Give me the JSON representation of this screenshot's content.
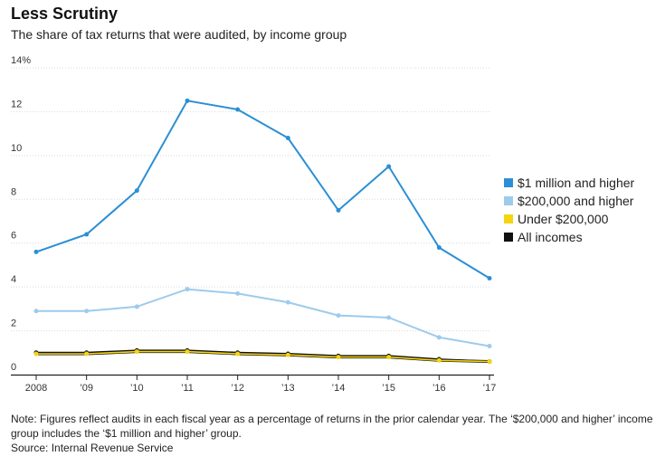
{
  "header": {
    "title": "Less Scrutiny",
    "subtitle": "The share of tax returns that were audited, by income group"
  },
  "footer": {
    "note": "Note: Figures reflect audits in each fiscal year as a percentage of returns in the prior calendar year. The ‘$200,000 and higher’ income group includes the ‘$1 million and higher’ group.",
    "source": "Source: Internal Revenue Service"
  },
  "chart_data": {
    "type": "line",
    "title": "Less Scrutiny",
    "subtitle": "The share of tax returns that were audited, by income group",
    "xlabel": "",
    "ylabel": "",
    "categories": [
      "2008",
      "’09",
      "’10",
      "’11",
      "’12",
      "’13",
      "’14",
      "’15",
      "’16",
      "’17"
    ],
    "ylim": [
      0,
      14
    ],
    "yticks": [
      0,
      2,
      4,
      6,
      8,
      10,
      12,
      14
    ],
    "ytick_labels": [
      "0",
      "2",
      "4",
      "6",
      "8",
      "10",
      "12",
      "14%"
    ],
    "grid": true,
    "legend_position": "right",
    "series": [
      {
        "name": "$1 million and higher",
        "color": "#2b8fd6",
        "values": [
          5.6,
          6.4,
          8.4,
          12.5,
          12.1,
          10.8,
          7.5,
          9.5,
          5.8,
          4.4
        ]
      },
      {
        "name": "$200,000 and higher",
        "color": "#9dcbec",
        "values": [
          2.9,
          2.9,
          3.1,
          3.9,
          3.7,
          3.3,
          2.7,
          2.6,
          1.7,
          1.3
        ]
      },
      {
        "name": "Under $200,000",
        "color": "#f5d50f",
        "values": [
          0.95,
          0.95,
          1.05,
          1.05,
          0.95,
          0.9,
          0.8,
          0.8,
          0.65,
          0.6
        ]
      },
      {
        "name": "All incomes",
        "color": "#111111",
        "values": [
          1.0,
          1.0,
          1.1,
          1.1,
          1.0,
          0.95,
          0.85,
          0.85,
          0.7,
          0.6
        ]
      }
    ]
  }
}
